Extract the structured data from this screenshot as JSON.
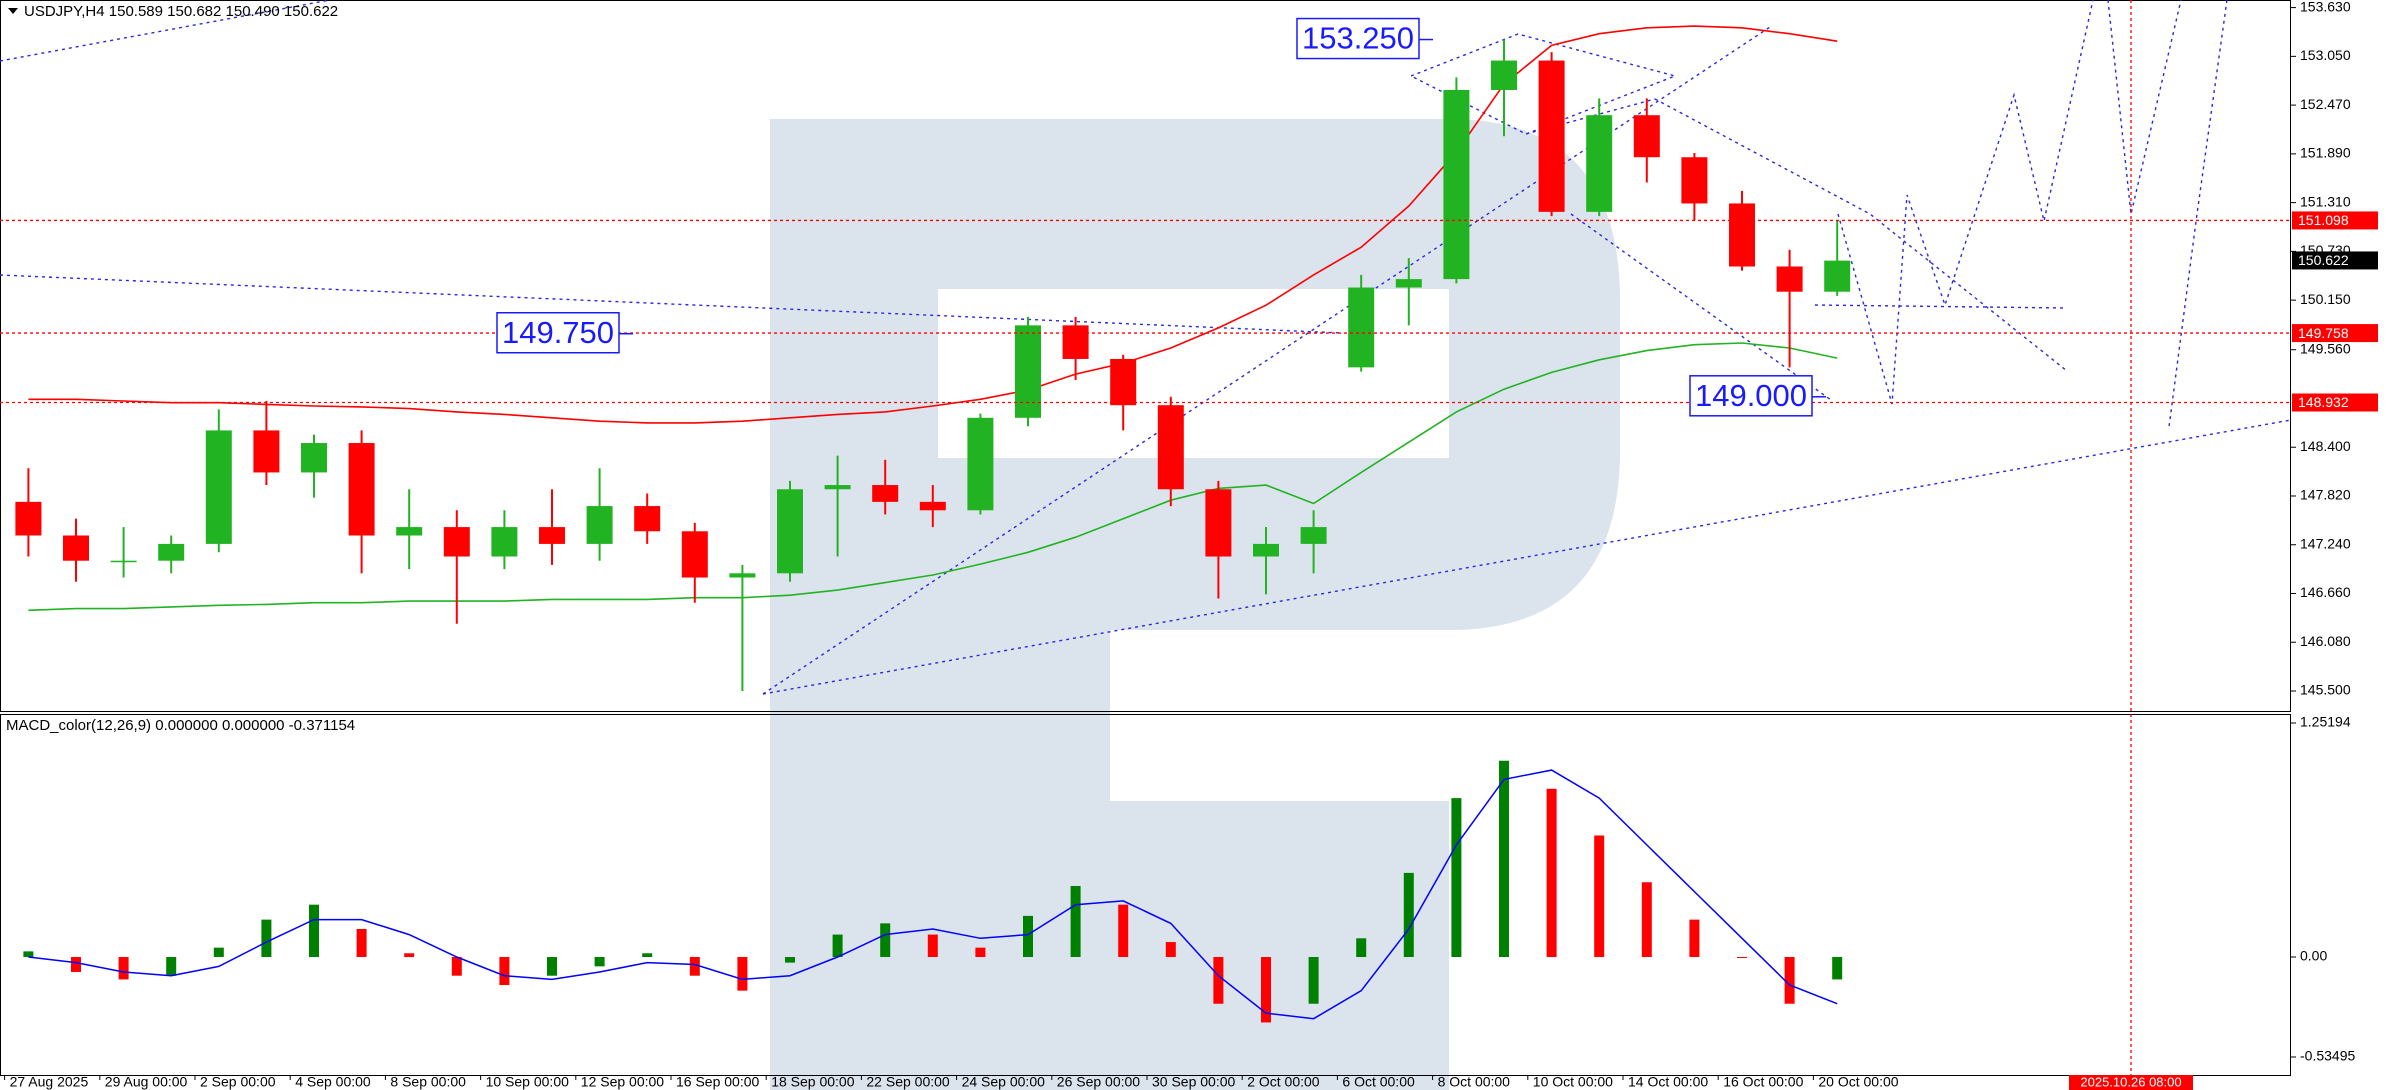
{
  "chart_data": [
    {
      "type": "candlestick",
      "title": "USDJPY,H4  150.589 150.682 150.490 150.622",
      "categories": [
        "27 Aug 2025",
        null,
        "29 Aug 00:00",
        null,
        "2 Sep 00:00",
        null,
        "4 Sep 00:00",
        null,
        "8 Sep 00:00",
        null,
        "10 Sep 00:00",
        null,
        "12 Sep 00:00",
        null,
        "16 Sep 00:00",
        null,
        "18 Sep 00:00",
        null,
        "22 Sep 00:00",
        null,
        "24 Sep 00:00",
        null,
        "26 Sep 00:00",
        null,
        "30 Sep 00:00",
        null,
        "2 Oct 00:00",
        null,
        "6 Oct 00:00",
        null,
        "8 Oct 00:00",
        null,
        "10 Oct 00:00",
        null,
        "14 Oct 00:00",
        null,
        "16 Oct 00:00",
        null,
        "20 Oct 00:00"
      ],
      "open": [
        147.75,
        147.35,
        147.05,
        147.05,
        147.25,
        148.6,
        148.1,
        148.45,
        147.35,
        147.45,
        147.1,
        147.45,
        147.25,
        147.7,
        147.4,
        146.85,
        146.9,
        147.9,
        147.95,
        147.75,
        147.65,
        148.75,
        149.85,
        149.45,
        148.9,
        147.9,
        147.1,
        147.25,
        149.35,
        150.3,
        150.4,
        152.65,
        153.0,
        151.2,
        152.35,
        151.85,
        151.3,
        150.55,
        150.25
      ],
      "high": [
        148.15,
        147.55,
        147.45,
        147.35,
        148.85,
        148.95,
        148.55,
        148.6,
        147.9,
        147.65,
        147.65,
        147.9,
        148.15,
        147.85,
        147.5,
        147.0,
        148.0,
        148.3,
        148.25,
        147.95,
        148.8,
        149.95,
        149.95,
        149.5,
        149.0,
        148.0,
        147.45,
        147.65,
        150.45,
        150.65,
        152.8,
        153.25,
        153.1,
        152.55,
        152.55,
        151.9,
        151.45,
        150.75,
        151.1
      ],
      "low": [
        147.1,
        146.8,
        146.85,
        146.9,
        147.15,
        147.95,
        147.8,
        146.9,
        146.95,
        146.3,
        146.95,
        147.0,
        147.05,
        147.25,
        146.55,
        145.5,
        146.8,
        147.1,
        147.6,
        147.45,
        147.6,
        148.65,
        149.2,
        148.6,
        147.7,
        146.6,
        146.65,
        146.9,
        149.3,
        149.85,
        150.35,
        152.1,
        151.15,
        151.15,
        151.55,
        151.1,
        150.5,
        149.35,
        150.2
      ],
      "close": [
        147.35,
        147.05,
        147.05,
        147.25,
        148.6,
        148.1,
        148.45,
        147.35,
        147.45,
        147.1,
        147.45,
        147.25,
        147.7,
        147.4,
        146.85,
        146.9,
        147.9,
        147.95,
        147.75,
        147.65,
        148.75,
        149.85,
        149.45,
        148.9,
        147.9,
        147.1,
        147.25,
        147.45,
        150.3,
        150.4,
        152.65,
        153.0,
        151.2,
        152.35,
        151.85,
        151.3,
        150.55,
        150.25,
        150.62
      ],
      "up_color": "#22b322",
      "down_color": "#ff0000",
      "lines": [
        {
          "color": "#ff0000",
          "values": [
            148.97,
            148.97,
            148.95,
            148.93,
            148.93,
            148.91,
            148.89,
            148.88,
            148.86,
            148.82,
            148.79,
            148.75,
            148.71,
            148.69,
            148.69,
            148.71,
            148.75,
            148.79,
            148.82,
            148.89,
            148.97,
            149.08,
            149.27,
            149.4,
            149.58,
            149.82,
            150.09,
            150.45,
            150.78,
            151.27,
            151.91,
            152.72,
            153.18,
            153.32,
            153.39,
            153.41,
            153.39,
            153.32,
            153.23
          ]
        },
        {
          "color": "#22b322",
          "values": [
            146.46,
            146.48,
            146.48,
            146.5,
            146.52,
            146.53,
            146.55,
            146.55,
            146.57,
            146.57,
            146.57,
            146.59,
            146.59,
            146.59,
            146.61,
            146.61,
            146.64,
            146.7,
            146.79,
            146.88,
            147.01,
            147.15,
            147.33,
            147.55,
            147.77,
            147.91,
            147.95,
            147.73,
            148.1,
            148.46,
            148.82,
            149.09,
            149.29,
            149.44,
            149.55,
            149.62,
            149.64,
            149.58,
            149.46
          ]
        }
      ],
      "ylim": [
        145.5,
        153.63
      ],
      "yticks": [
        {
          "value": 153.63,
          "label": "153.630"
        },
        {
          "value": 153.05,
          "label": "153.050"
        },
        {
          "value": 152.47,
          "label": "152.470"
        },
        {
          "value": 151.89,
          "label": "151.890"
        },
        {
          "value": 151.31,
          "label": "151.310"
        },
        {
          "value": 150.73,
          "label": "150.730"
        },
        {
          "value": 150.15,
          "label": "150.150"
        },
        {
          "value": 149.56,
          "label": "149.560"
        },
        {
          "value": 148.4,
          "label": "148.400"
        },
        {
          "value": 147.82,
          "label": "147.820"
        },
        {
          "value": 147.24,
          "label": "147.240"
        },
        {
          "value": 146.66,
          "label": "146.660"
        },
        {
          "value": 146.08,
          "label": "146.080"
        },
        {
          "value": 145.5,
          "label": "145.500"
        }
      ],
      "price_lines": [
        151.098,
        149.758,
        148.932
      ],
      "price_line_color": "#ff0000",
      "current_price": 150.622,
      "annotations": [
        {
          "value": 153.25,
          "label": "153.250"
        },
        {
          "value": 149.75,
          "label": "149.750"
        },
        {
          "value": 149,
          "label": "149.000"
        }
      ],
      "x_marker": "2025.10.26 08:00"
    },
    {
      "type": "macd",
      "title": "MACD_color(12,26,9) 0.000000 0.000000 -0.371154",
      "values": [
        0.03,
        -0.08,
        -0.12,
        -0.1,
        0.05,
        0.2,
        0.28,
        0.15,
        0.02,
        -0.1,
        -0.15,
        -0.1,
        -0.05,
        0.02,
        -0.1,
        -0.18,
        -0.03,
        0.12,
        0.18,
        0.12,
        0.05,
        0.22,
        0.38,
        0.28,
        0.08,
        -0.25,
        -0.35,
        -0.25,
        0.1,
        0.45,
        0.85,
        1.05,
        0.9,
        0.65,
        0.4,
        0.2,
        0.0,
        -0.25,
        -0.12
      ],
      "signal": [
        0.0,
        -0.03,
        -0.08,
        -0.1,
        -0.05,
        0.08,
        0.2,
        0.2,
        0.12,
        0.0,
        -0.1,
        -0.12,
        -0.08,
        -0.03,
        -0.04,
        -0.12,
        -0.1,
        0.0,
        0.12,
        0.15,
        0.1,
        0.12,
        0.28,
        0.3,
        0.18,
        -0.1,
        -0.3,
        -0.33,
        -0.18,
        0.15,
        0.6,
        0.95,
        1.0,
        0.85,
        0.6,
        0.35,
        0.1,
        -0.15,
        -0.25
      ],
      "up_color": "#008000",
      "down_color": "#ff0000",
      "signal_color": "#0000ff",
      "ylim": [
        -0.53495,
        1.25194
      ],
      "yticks": [
        1.25194,
        {
          "value": 0,
          "label": "0.00"
        },
        -0.53495
      ]
    }
  ]
}
